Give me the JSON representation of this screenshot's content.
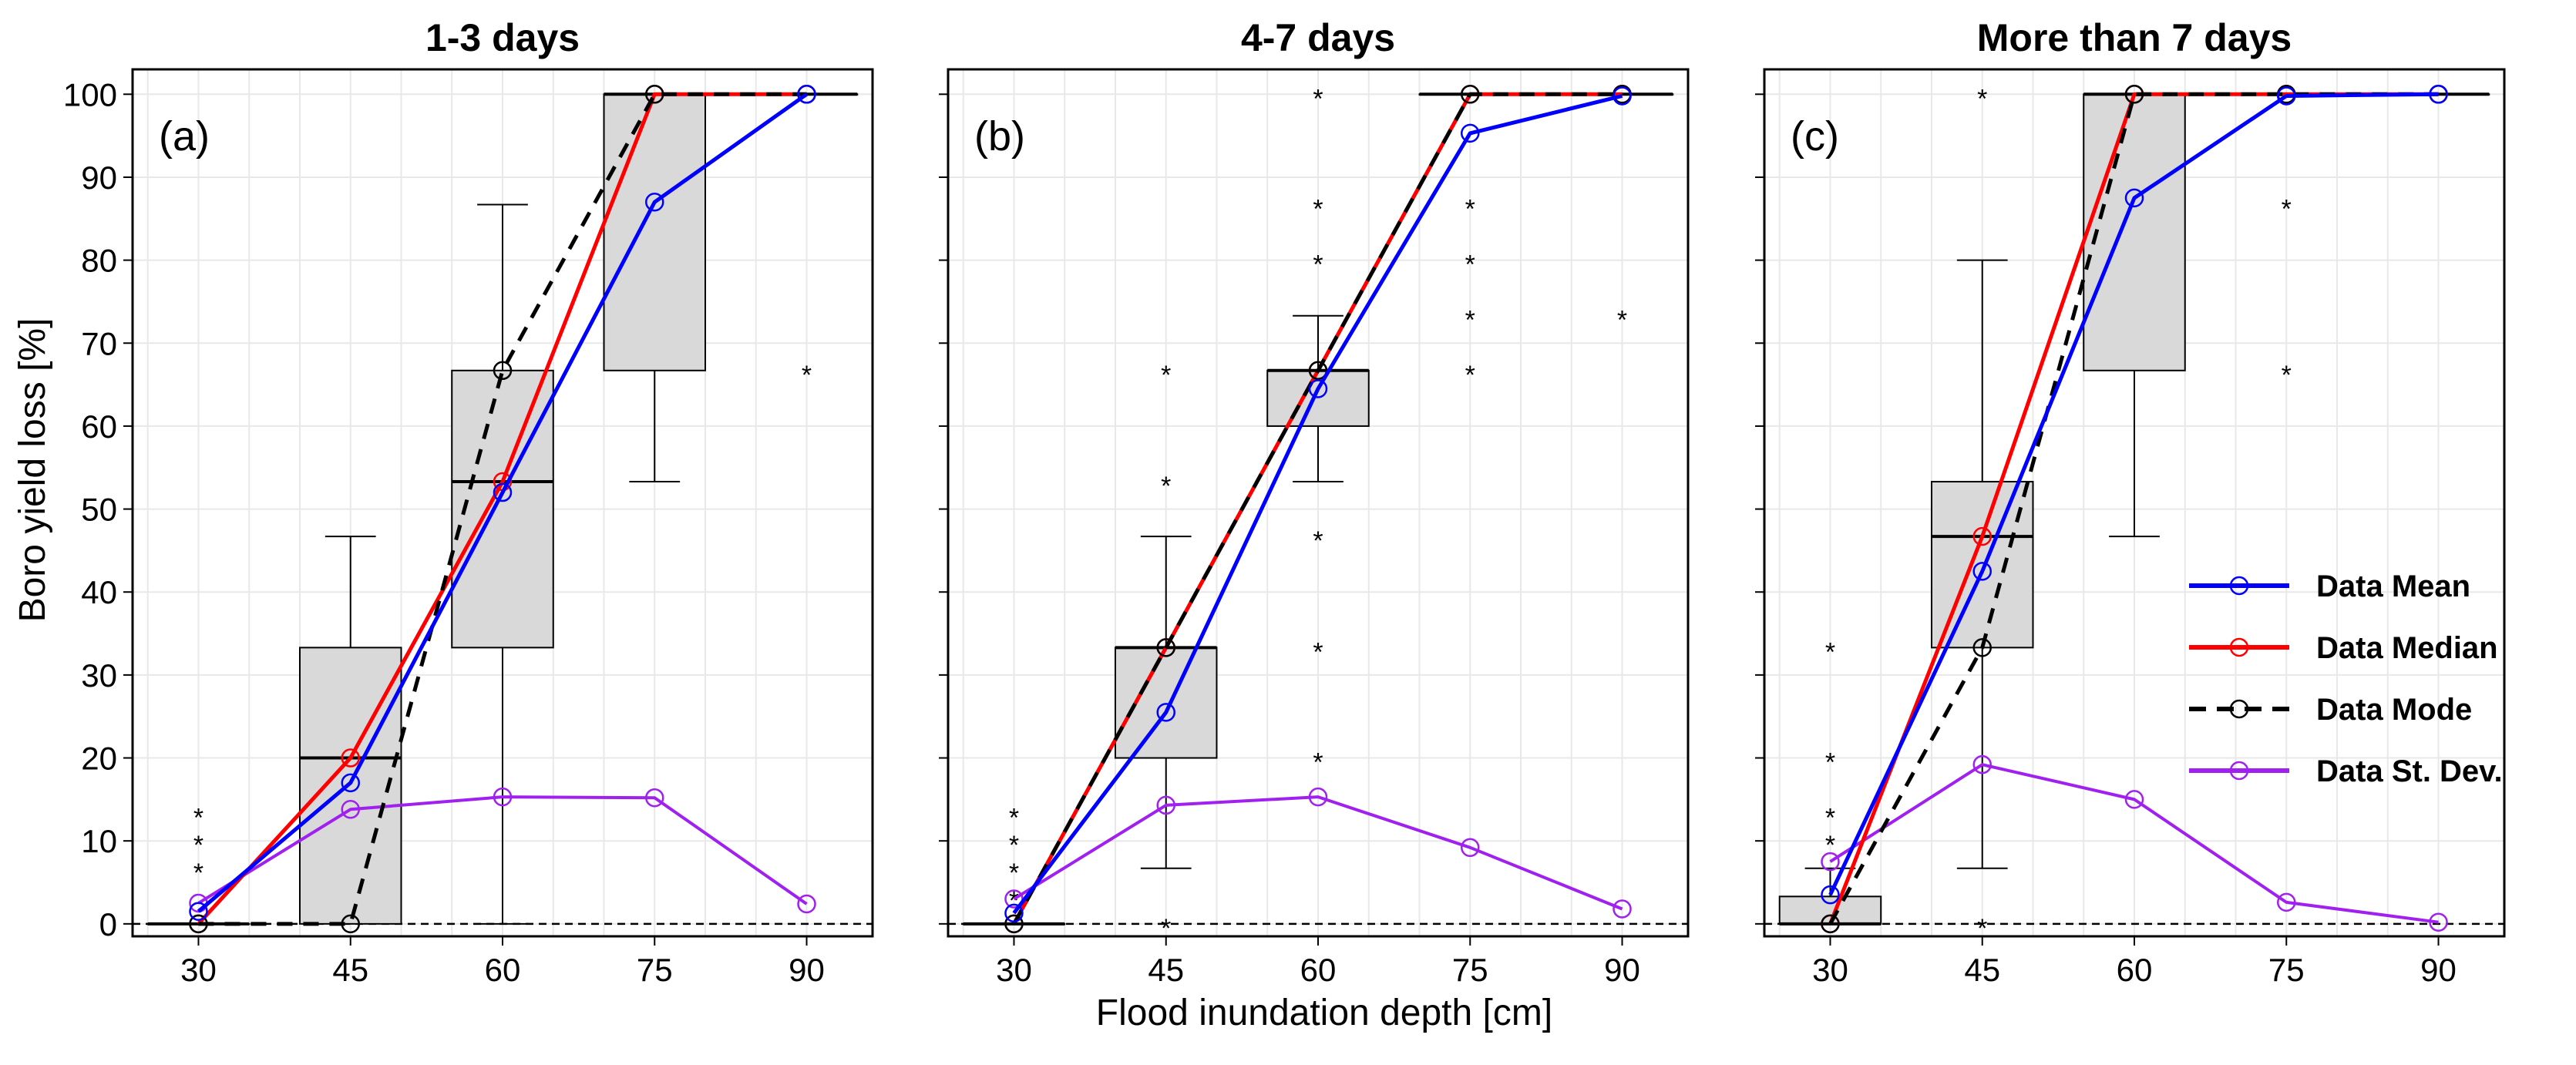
{
  "figure": {
    "xlabel": "Flood inundation depth [cm]",
    "ylabel": "Boro yield loss [%]",
    "x_ticks": [
      30,
      45,
      60,
      75,
      90
    ],
    "y_ticks": [
      0,
      10,
      20,
      30,
      40,
      50,
      60,
      70,
      80,
      90,
      100
    ],
    "xlim": [
      23.5,
      96.5
    ],
    "ylim": [
      -1.5,
      103
    ]
  },
  "legend": {
    "entries": [
      {
        "label": "Data Mean",
        "color": "#0000ff",
        "style": "solid"
      },
      {
        "label": "Data Median",
        "color": "#ff0000",
        "style": "solid"
      },
      {
        "label": "Data Mode",
        "color": "#000000",
        "style": "dashed"
      },
      {
        "label": "Data St. Dev.",
        "color": "#a020f0",
        "style": "solid"
      }
    ]
  },
  "colors": {
    "box_fill": "#d9d9d9",
    "grid": "#e8e8e8",
    "mean": "#0000ff",
    "median": "#ff0000",
    "mode": "#000000",
    "std": "#a020f0"
  },
  "chart_data": [
    {
      "type": "box+line",
      "title": "1-3 days",
      "panel_label": "(a)",
      "x": [
        30,
        45,
        60,
        75,
        90
      ],
      "boxes": [
        {
          "x": 30,
          "q1": 0,
          "median": 0,
          "q3": 0,
          "whisker_low": 0,
          "whisker_high": 0,
          "outliers": [
            6.67,
            10,
            13.33
          ]
        },
        {
          "x": 45,
          "q1": 0,
          "median": 20,
          "q3": 33.3,
          "whisker_low": 0,
          "whisker_high": 46.7,
          "outliers": []
        },
        {
          "x": 60,
          "q1": 33.3,
          "median": 53.3,
          "q3": 66.7,
          "whisker_low": 0,
          "whisker_high": 86.7,
          "outliers": []
        },
        {
          "x": 75,
          "q1": 66.7,
          "median": 100,
          "q3": 100,
          "whisker_low": 53.3,
          "whisker_high": 100,
          "outliers": []
        },
        {
          "x": 90,
          "q1": 100,
          "median": 100,
          "q3": 100,
          "whisker_low": 100,
          "whisker_high": 100,
          "outliers": [
            66.7
          ]
        }
      ],
      "series": [
        {
          "name": "Data Mean",
          "values": [
            1.5,
            17,
            52,
            87,
            100
          ]
        },
        {
          "name": "Data Median",
          "values": [
            0,
            20,
            53.3,
            100,
            100
          ]
        },
        {
          "name": "Data Mode",
          "values": [
            0,
            0,
            66.7,
            100,
            100
          ]
        },
        {
          "name": "Data St. Dev.",
          "values": [
            2.5,
            13.8,
            15.3,
            15.2,
            2.4
          ]
        }
      ]
    },
    {
      "type": "box+line",
      "title": "4-7 days",
      "panel_label": "(b)",
      "x": [
        30,
        45,
        60,
        75,
        90
      ],
      "boxes": [
        {
          "x": 30,
          "q1": 0,
          "median": 0,
          "q3": 0,
          "whisker_low": 0,
          "whisker_high": 0,
          "outliers": [
            3.33,
            6.67,
            10,
            13.33
          ]
        },
        {
          "x": 45,
          "q1": 20,
          "median": 33.3,
          "q3": 33.3,
          "whisker_low": 6.7,
          "whisker_high": 46.7,
          "outliers": [
            0,
            53.3,
            66.7
          ]
        },
        {
          "x": 60,
          "q1": 60,
          "median": 66.7,
          "q3": 66.7,
          "whisker_low": 53.3,
          "whisker_high": 73.3,
          "outliers": [
            20,
            33.3,
            46.7,
            80,
            86.7,
            100
          ]
        },
        {
          "x": 75,
          "q1": 100,
          "median": 100,
          "q3": 100,
          "whisker_low": 100,
          "whisker_high": 100,
          "outliers": [
            66.7,
            73.3,
            80,
            86.7
          ]
        },
        {
          "x": 90,
          "q1": 100,
          "median": 100,
          "q3": 100,
          "whisker_low": 100,
          "whisker_high": 100,
          "outliers": [
            73.3
          ]
        }
      ],
      "series": [
        {
          "name": "Data Mean",
          "values": [
            1.3,
            25.5,
            64.5,
            95.3,
            99.8
          ]
        },
        {
          "name": "Data Median",
          "values": [
            0,
            33.3,
            66.7,
            100,
            100
          ]
        },
        {
          "name": "Data Mode",
          "values": [
            0,
            33.3,
            66.7,
            100,
            100
          ]
        },
        {
          "name": "Data St. Dev.",
          "values": [
            3,
            14.3,
            15.3,
            9.2,
            1.8
          ]
        }
      ]
    },
    {
      "type": "box+line",
      "title": "More than 7 days",
      "panel_label": "(c)",
      "x": [
        30,
        45,
        60,
        75,
        90
      ],
      "boxes": [
        {
          "x": 30,
          "q1": 0,
          "median": 0,
          "q3": 3.3,
          "whisker_low": 0,
          "whisker_high": 6.7,
          "outliers": [
            10,
            13.33,
            20,
            33.3
          ]
        },
        {
          "x": 45,
          "q1": 33.3,
          "median": 46.7,
          "q3": 53.3,
          "whisker_low": 6.7,
          "whisker_high": 80,
          "outliers": [
            0,
            100
          ]
        },
        {
          "x": 60,
          "q1": 66.7,
          "median": 100,
          "q3": 100,
          "whisker_low": 46.7,
          "whisker_high": 100,
          "outliers": []
        },
        {
          "x": 75,
          "q1": 100,
          "median": 100,
          "q3": 100,
          "whisker_low": 100,
          "whisker_high": 100,
          "outliers": [
            66.7,
            86.7
          ]
        },
        {
          "x": 90,
          "q1": 100,
          "median": 100,
          "q3": 100,
          "whisker_low": 100,
          "whisker_high": 100,
          "outliers": []
        }
      ],
      "series": [
        {
          "name": "Data Mean",
          "values": [
            3.5,
            42.5,
            87.5,
            99.8,
            100
          ]
        },
        {
          "name": "Data Median",
          "values": [
            0,
            46.7,
            100,
            100,
            100
          ]
        },
        {
          "name": "Data Mode",
          "values": [
            0,
            33.3,
            100,
            100,
            100
          ]
        },
        {
          "name": "Data St. Dev.",
          "values": [
            7.5,
            19.2,
            15,
            2.6,
            0.2
          ]
        }
      ]
    }
  ]
}
